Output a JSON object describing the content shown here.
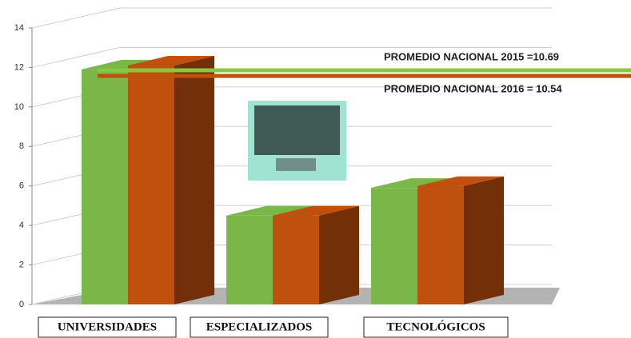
{
  "chart_data": {
    "type": "bar3d",
    "categories": [
      "UNIVERSIDADES",
      "ESPECIALIZADOS",
      "TECNOLÓGICOS"
    ],
    "series": [
      {
        "name": "2015",
        "color": "#7ab648",
        "values": [
          11.9,
          4.5,
          5.9
        ]
      },
      {
        "name": "2016",
        "color": "#c0500e",
        "values": [
          12.1,
          4.5,
          6.0
        ]
      }
    ],
    "ylim": [
      0,
      14
    ],
    "yticks": [
      0,
      2,
      4,
      6,
      8,
      10,
      12,
      14
    ],
    "grid": true,
    "annotations": [
      "PROMEDIO  NACIONAL 2015 =10.69",
      "PROMEDIO  NACIONAL 2016 = 10.54"
    ]
  }
}
